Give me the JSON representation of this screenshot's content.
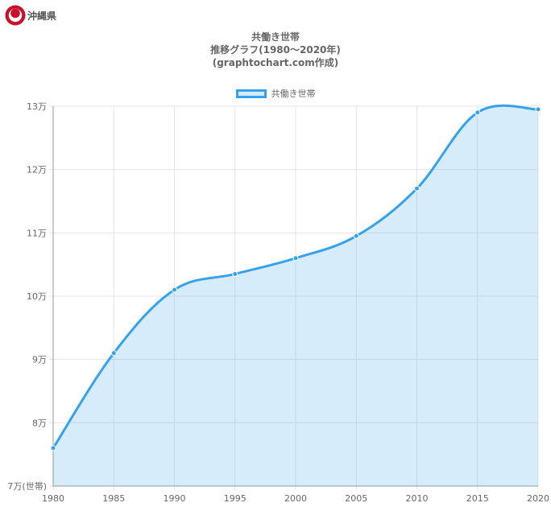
{
  "header": {
    "prefecture": "沖縄県",
    "logo_icon": "okinawa-prefecture-emblem"
  },
  "chart_data": {
    "type": "area",
    "title_lines": [
      "共働き世帯",
      "推移グラフ(1980～2020年)",
      "(graphtochart.com作成)"
    ],
    "legend": [
      {
        "label": "共働き世帯",
        "color": "#36a2eb"
      }
    ],
    "x": [
      1980,
      1985,
      1990,
      1995,
      2000,
      2005,
      2010,
      2015,
      2020
    ],
    "series": [
      {
        "name": "共働き世帯",
        "values": [
          76000,
          91000,
          101000,
          103500,
          106000,
          109500,
          117000,
          129000,
          129500
        ]
      }
    ],
    "ylim": [
      70000,
      130000
    ],
    "yticks": [
      {
        "value": 130000,
        "label": "13万"
      },
      {
        "value": 120000,
        "label": "12万"
      },
      {
        "value": 110000,
        "label": "11万"
      },
      {
        "value": 100000,
        "label": "10万"
      },
      {
        "value": 90000,
        "label": "9万"
      },
      {
        "value": 80000,
        "label": "8万"
      },
      {
        "value": 70000,
        "label": "7万(世帯)"
      }
    ],
    "xticks": [
      "1980",
      "1985",
      "1990",
      "1995",
      "2000",
      "2005",
      "2010",
      "2015",
      "2020"
    ],
    "grid": true,
    "colors": {
      "line": "#36a2eb",
      "fill": "rgba(54,162,235,0.2)",
      "grid": "#e5e5e5"
    }
  }
}
